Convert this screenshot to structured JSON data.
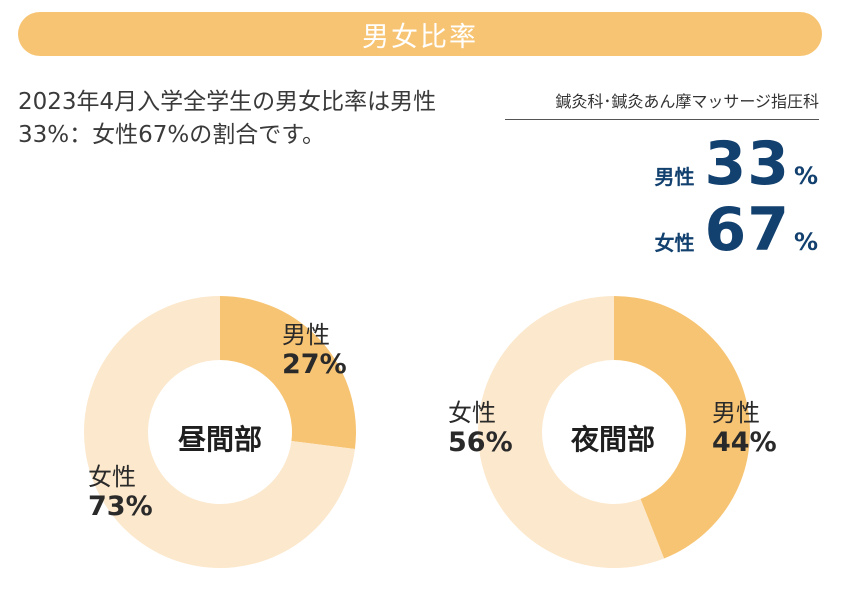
{
  "header": {
    "title": "男女比率"
  },
  "intro": {
    "line1": "2023年4月入学全学生の男女比率は男性",
    "line2": "33%：女性67%の割合です。"
  },
  "summary": {
    "department": "鍼灸科･鍼灸あん摩マッサージ指圧科",
    "male_label": "男性",
    "male_value": "33",
    "male_unit": "%",
    "female_label": "女性",
    "female_value": "67",
    "female_unit": "%"
  },
  "colors": {
    "male": "#f7c473",
    "female": "#fce8cc",
    "header": "#f7c473",
    "accent": "#12406f"
  },
  "chart_data": [
    {
      "type": "pie",
      "title": "昼間部",
      "categories": [
        "男性",
        "女性"
      ],
      "values": [
        27,
        73
      ],
      "percent_labels": [
        "27%",
        "73%"
      ],
      "donut": true
    },
    {
      "type": "pie",
      "title": "夜間部",
      "categories": [
        "男性",
        "女性"
      ],
      "values": [
        44,
        56
      ],
      "percent_labels": [
        "44%",
        "56%"
      ],
      "donut": true
    }
  ]
}
